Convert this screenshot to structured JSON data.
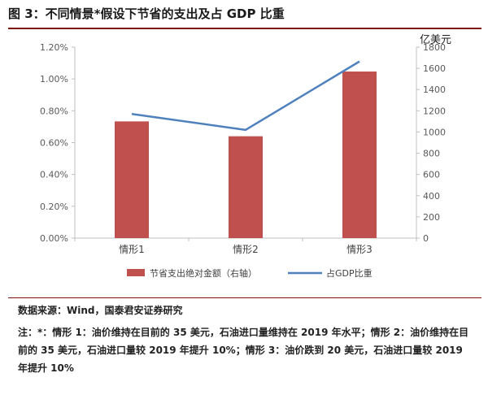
{
  "figure": {
    "title": "图 3：不同情景*假设下节省的支出及占 GDP 比重",
    "source": "数据来源：Wind，国泰君安证券研究",
    "note": "注：*：情形 1：油价维持在目前的 35 美元，石油进口量维持在 2019 年水平；情形 2：油价维持在目前的 35 美元，石油进口量较 2019 年提升 10%；情形 3：油价跌到 20 美元，石油进口量较 2019 年提升 10%"
  },
  "chart_data": {
    "type": "bar",
    "categories": [
      "情形1",
      "情形2",
      "情形3"
    ],
    "series": [
      {
        "name": "节省支出绝对金额（右轴）",
        "kind": "bar",
        "axis": "right",
        "color": "#c0504d",
        "values": [
          1100,
          960,
          1570
        ]
      },
      {
        "name": "占GDP比重",
        "kind": "line",
        "axis": "left",
        "color": "#4f81bd",
        "values": [
          0.0078,
          0.0068,
          0.0111
        ]
      }
    ],
    "y_left": {
      "ticks": [
        "0.00%",
        "0.20%",
        "0.40%",
        "0.60%",
        "0.80%",
        "1.00%",
        "1.20%"
      ],
      "min": 0,
      "max": 0.012
    },
    "y_right": {
      "label": "亿美元",
      "ticks": [
        "0",
        "200",
        "400",
        "600",
        "800",
        "1000",
        "1200",
        "1400",
        "1600",
        "1800"
      ],
      "min": 0,
      "max": 1800
    },
    "legend_position": "bottom",
    "grid": false
  }
}
